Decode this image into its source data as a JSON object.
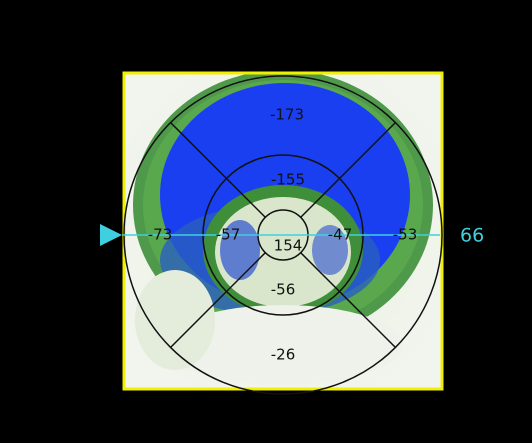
{
  "bullseye": {
    "segments": {
      "basal_anterior": "-173",
      "mid_anterior": "-155",
      "basal_septal": "-73",
      "mid_septal": "-57",
      "apex": "154",
      "mid_lateral": "-47",
      "basal_lateral": "-53",
      "mid_inferior": "-56",
      "basal_inferior": "-26"
    },
    "marker_value": "66"
  }
}
